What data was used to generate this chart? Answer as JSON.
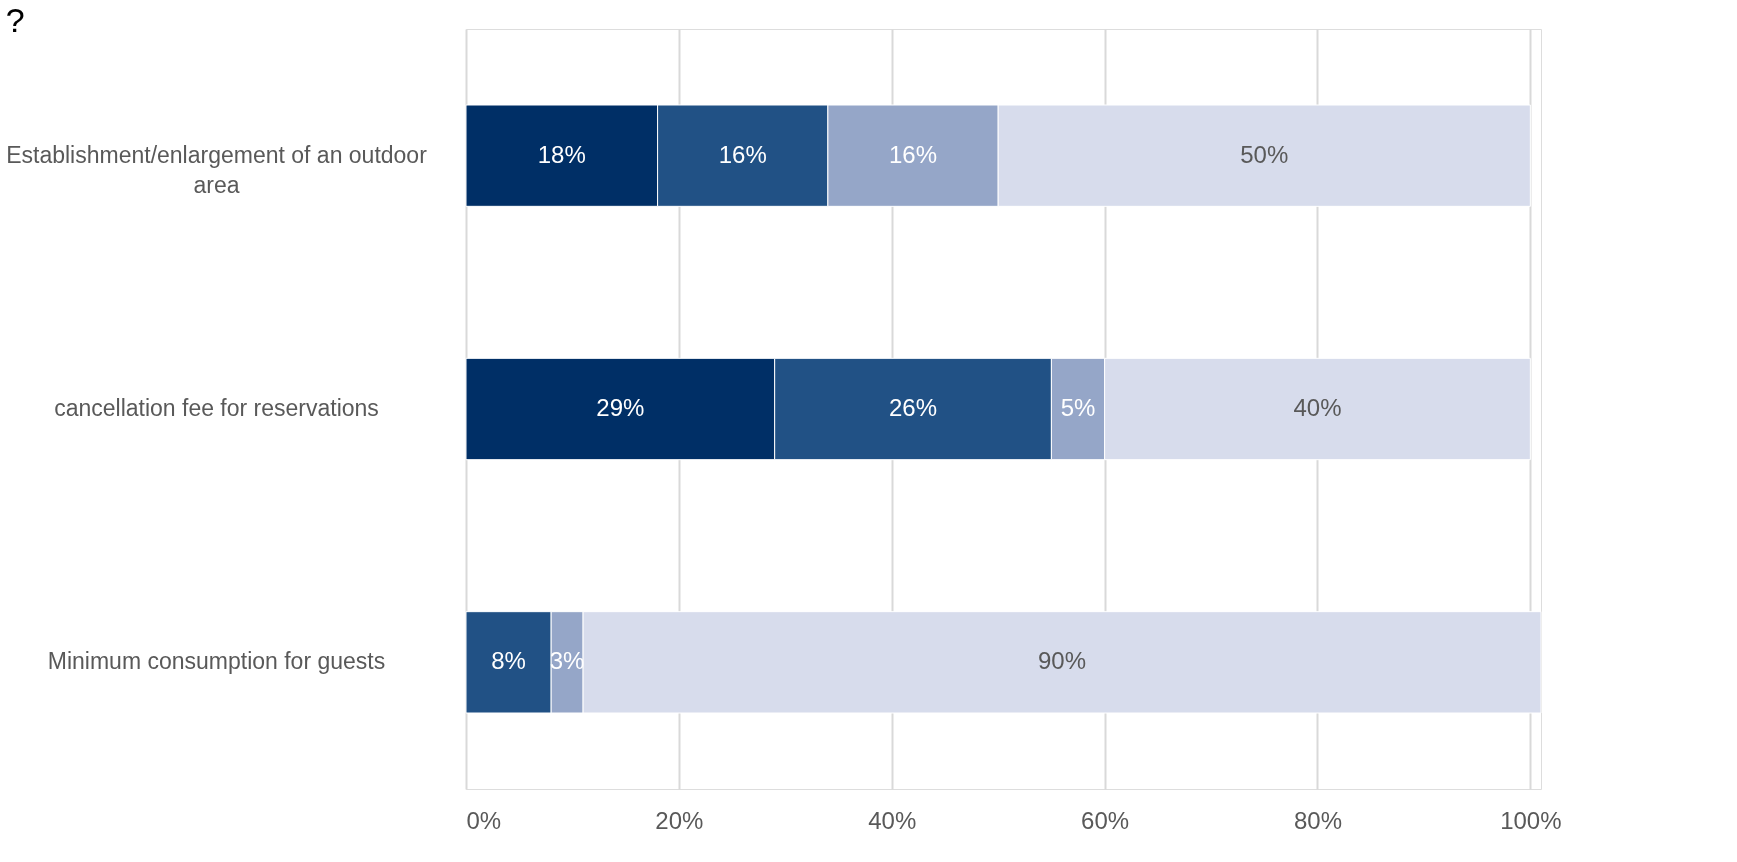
{
  "chart_data": {
    "type": "bar",
    "orientation": "horizontal",
    "stacked": true,
    "title": "?",
    "categories": [
      "Establishment/enlargement of an outdoor area",
      "cancellation fee for reservations",
      "Minimum consumption for guests"
    ],
    "series": [
      {
        "color": "#002f66",
        "values": [
          18,
          29,
          null
        ],
        "value_labels": [
          "18%",
          "29%",
          null
        ]
      },
      {
        "color": "#215185",
        "values": [
          16,
          26,
          8
        ],
        "value_labels": [
          "16%",
          "26%",
          "8%"
        ]
      },
      {
        "color": "#95a6c8",
        "values": [
          16,
          5,
          3
        ],
        "value_labels": [
          "16%",
          "5%",
          "3%"
        ]
      },
      {
        "color": "#d7dcec",
        "values": [
          50,
          40,
          90
        ],
        "value_labels": [
          "50%",
          "40%",
          "90%"
        ]
      }
    ],
    "xlim": [
      0,
      101
    ],
    "xticks": [
      {
        "value": 0,
        "label": "0%"
      },
      {
        "value": 20,
        "label": "20%"
      },
      {
        "value": 40,
        "label": "40%"
      },
      {
        "value": 60,
        "label": "60%"
      },
      {
        "value": 80,
        "label": "80%"
      },
      {
        "value": 100,
        "label": "100%"
      }
    ],
    "grid": "x",
    "legend": false
  }
}
